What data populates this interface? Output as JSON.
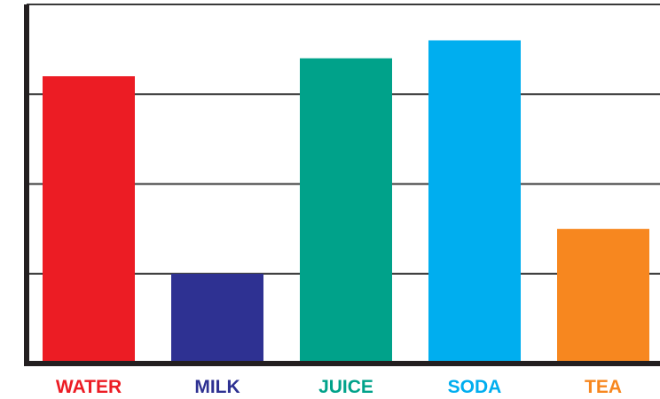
{
  "chart_data": {
    "type": "bar",
    "title": "",
    "xlabel": "",
    "ylabel": "",
    "categories": [
      "WATER",
      "MILK",
      "JUICE",
      "SODA",
      "TEA"
    ],
    "values": [
      3.2,
      1.0,
      3.4,
      3.6,
      1.5
    ],
    "ylim": [
      0,
      4
    ],
    "yticks": [
      0,
      1,
      2,
      3,
      4
    ],
    "grid": true,
    "tick_labels_shown": false,
    "colors": [
      "#ec1c24",
      "#2e3192",
      "#00a28a",
      "#00aeef",
      "#f7871f"
    ]
  }
}
